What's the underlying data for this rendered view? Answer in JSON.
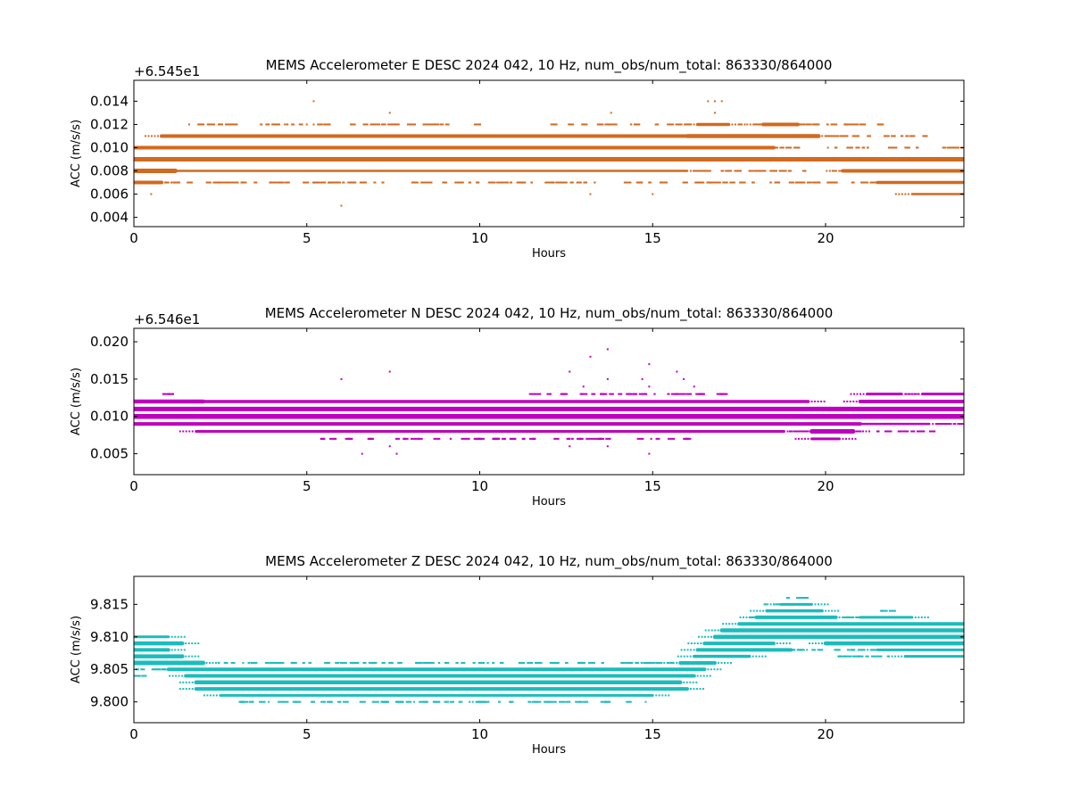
{
  "chart_data": [
    {
      "type": "scatter",
      "title": "MEMS Accelerometer E DESC 2024 042, 10 Hz, num_obs/num_total: 863330/864000",
      "offset_label": "+6.545e1",
      "xlabel": "Hours",
      "ylabel": "ACC (m/s/s)",
      "xlim": [
        0,
        24
      ],
      "ylim": [
        0.0032,
        0.0158
      ],
      "x_ticks": [
        0,
        5,
        10,
        15,
        20
      ],
      "x_tick_labels": [
        "0",
        "5",
        "10",
        "15",
        "20"
      ],
      "y_ticks": [
        0.004,
        0.006,
        0.008,
        0.01,
        0.012,
        0.014
      ],
      "y_tick_labels": [
        "0.004",
        "0.006",
        "0.008",
        "0.010",
        "0.012",
        "0.014"
      ],
      "grid": false,
      "color": "#d2691e",
      "bands": [
        {
          "y": 0.012,
          "segments": [
            [
              16.3,
              17.2,
              3.5
            ],
            [
              18.2,
              19.2,
              4
            ]
          ],
          "scatter": [
            [
              1.6,
              10.0
            ],
            [
              12.0,
              21.5
            ]
          ]
        },
        {
          "y": 0.011,
          "segments": [
            [
              0.8,
              16.0,
              4
            ],
            [
              16.0,
              19.8,
              4.5
            ]
          ],
          "scatter": [
            [
              19.8,
              23.0
            ]
          ]
        },
        {
          "y": 0.01,
          "segments": [
            [
              0.0,
              18.5,
              4
            ]
          ],
          "scatter": [
            [
              18.5,
              24.0
            ]
          ]
        },
        {
          "y": 0.009,
          "segments": [
            [
              0.0,
              24.0,
              5
            ]
          ],
          "scatter": []
        },
        {
          "y": 0.008,
          "segments": [
            [
              0.0,
              16.0,
              2.5
            ],
            [
              0.0,
              1.2,
              5
            ],
            [
              20.5,
              24.0,
              4
            ]
          ],
          "scatter": [
            [
              16.0,
              20.5
            ]
          ]
        },
        {
          "y": 0.007,
          "segments": [
            [
              0.0,
              0.8,
              4
            ],
            [
              21.5,
              24.0,
              3.5
            ]
          ],
          "scatter": [
            [
              0.8,
              21.5
            ]
          ]
        },
        {
          "y": 0.006,
          "segments": [
            [
              22.5,
              24.0,
              2.5
            ]
          ],
          "scatter": []
        }
      ],
      "points": [
        [
          5.2,
          0.014
        ],
        [
          16.6,
          0.014
        ],
        [
          16.8,
          0.014
        ],
        [
          17.0,
          0.014
        ],
        [
          7.4,
          0.013
        ],
        [
          13.8,
          0.013
        ],
        [
          16.8,
          0.013
        ],
        [
          0.5,
          0.006
        ],
        [
          13.2,
          0.006
        ],
        [
          15.0,
          0.006
        ],
        [
          6.0,
          0.005
        ],
        [
          5.0,
          0.012
        ],
        [
          5.2,
          0.012
        ],
        [
          8.0,
          0.012
        ],
        [
          1.6,
          0.012
        ]
      ]
    },
    {
      "type": "scatter",
      "title": "MEMS Accelerometer N DESC 2024 042, 10 Hz, num_obs/num_total: 863330/864000",
      "offset_label": "+6.546e1",
      "xlabel": "Hours",
      "ylabel": "ACC (m/s/s)",
      "xlim": [
        0,
        24
      ],
      "ylim": [
        0.0022,
        0.0218
      ],
      "x_ticks": [
        0,
        5,
        10,
        15,
        20
      ],
      "x_tick_labels": [
        "0",
        "5",
        "10",
        "15",
        "20"
      ],
      "y_ticks": [
        0.005,
        0.01,
        0.015,
        0.02
      ],
      "y_tick_labels": [
        "0.005",
        "0.010",
        "0.015",
        "0.020"
      ],
      "grid": false,
      "color": "#bf00bf",
      "bands": [
        {
          "y": 0.013,
          "segments": [
            [
              21.2,
              22.2,
              3
            ],
            [
              22.8,
              24.0,
              3
            ]
          ],
          "scatter": [
            [
              0.8,
              1.2
            ],
            [
              11.2,
              17.5
            ]
          ]
        },
        {
          "y": 0.012,
          "segments": [
            [
              0.0,
              2.0,
              4.5
            ],
            [
              2.0,
              19.5,
              3.5
            ],
            [
              21.0,
              24.0,
              4
            ]
          ],
          "scatter": []
        },
        {
          "y": 0.011,
          "segments": [
            [
              0.0,
              24.0,
              5
            ]
          ],
          "scatter": []
        },
        {
          "y": 0.01,
          "segments": [
            [
              0.0,
              24.0,
              5.5
            ]
          ],
          "scatter": []
        },
        {
          "y": 0.009,
          "segments": [
            [
              0.0,
              21.0,
              4
            ],
            [
              21.0,
              23.0,
              2.5
            ]
          ],
          "scatter": [
            [
              23.0,
              24.0
            ]
          ]
        },
        {
          "y": 0.008,
          "segments": [
            [
              1.8,
              18.8,
              3
            ],
            [
              19.6,
              20.8,
              5
            ]
          ],
          "scatter": [
            [
              18.8,
              23.0
            ]
          ]
        },
        {
          "y": 0.007,
          "segments": [
            [
              19.6,
              20.4,
              3
            ]
          ],
          "scatter": [
            [
              5.0,
              16.0
            ]
          ]
        }
      ],
      "points": [
        [
          13.7,
          0.019
        ],
        [
          13.2,
          0.018
        ],
        [
          7.4,
          0.016
        ],
        [
          12.6,
          0.016
        ],
        [
          14.9,
          0.017
        ],
        [
          15.7,
          0.016
        ],
        [
          6.0,
          0.015
        ],
        [
          13.7,
          0.015
        ],
        [
          14.7,
          0.015
        ],
        [
          15.9,
          0.015
        ],
        [
          6.6,
          0.005
        ],
        [
          7.6,
          0.005
        ],
        [
          12.6,
          0.006
        ],
        [
          13.7,
          0.006
        ],
        [
          14.9,
          0.005
        ],
        [
          7.4,
          0.006
        ],
        [
          14.9,
          0.014
        ],
        [
          16.2,
          0.014
        ],
        [
          13.0,
          0.014
        ]
      ]
    },
    {
      "type": "scatter",
      "title": "MEMS Accelerometer Z DESC 2024 042, 10 Hz, num_obs/num_total: 863330/864000",
      "offset_label": "",
      "xlabel": "Hours",
      "ylabel": "ACC (m/s/s)",
      "xlim": [
        0,
        24
      ],
      "ylim": [
        9.7968,
        9.8193
      ],
      "x_ticks": [
        0,
        5,
        10,
        15,
        20
      ],
      "x_tick_labels": [
        "0",
        "5",
        "10",
        "15",
        "20"
      ],
      "y_ticks": [
        9.8,
        9.805,
        9.81,
        9.815
      ],
      "y_tick_labels": [
        "9.800",
        "9.805",
        "9.810",
        "9.815"
      ],
      "grid": false,
      "color": "#1abcbc",
      "bands": [
        {
          "y": 9.816,
          "segments": [],
          "scatter": [
            [
              18.8,
              19.4
            ]
          ]
        },
        {
          "y": 9.815,
          "segments": [
            [
              18.7,
              19.6,
              3
            ]
          ],
          "scatter": [
            [
              18.2,
              18.7
            ]
          ]
        },
        {
          "y": 9.814,
          "segments": [
            [
              18.3,
              19.9,
              3.5
            ]
          ],
          "scatter": [
            [
              21.3,
              22.0
            ]
          ]
        },
        {
          "y": 9.813,
          "segments": [
            [
              18.0,
              20.3,
              4
            ],
            [
              21.0,
              22.5,
              3
            ]
          ],
          "scatter": [
            [
              17.6,
              18.0
            ],
            [
              20.3,
              21.0
            ]
          ]
        },
        {
          "y": 9.812,
          "segments": [
            [
              17.5,
              24.0,
              4
            ]
          ],
          "scatter": []
        },
        {
          "y": 9.811,
          "segments": [
            [
              17.0,
              24.0,
              4.5
            ]
          ],
          "scatter": []
        },
        {
          "y": 9.81,
          "segments": [
            [
              0.0,
              1.0,
              3
            ],
            [
              16.8,
              24.0,
              4.5
            ]
          ],
          "scatter": []
        },
        {
          "y": 9.809,
          "segments": [
            [
              0.0,
              1.4,
              4.5
            ],
            [
              16.5,
              18.5,
              4
            ],
            [
              20.0,
              24.0,
              4.5
            ]
          ],
          "scatter": []
        },
        {
          "y": 9.808,
          "segments": [
            [
              0.0,
              1.0,
              4
            ],
            [
              16.3,
              19.0,
              4
            ],
            [
              21.5,
              24.0,
              3
            ]
          ],
          "scatter": [
            [
              19.0,
              21.5
            ]
          ]
        },
        {
          "y": 9.807,
          "segments": [
            [
              0.0,
              1.4,
              4.5
            ],
            [
              16.2,
              17.8,
              3.5
            ],
            [
              22.3,
              24.0,
              3
            ]
          ],
          "scatter": [
            [
              20.2,
              22.3
            ]
          ]
        },
        {
          "y": 9.806,
          "segments": [
            [
              0.0,
              2.0,
              5
            ],
            [
              15.8,
              16.8,
              4
            ]
          ],
          "scatter": [
            [
              2.0,
              15.8
            ]
          ]
        },
        {
          "y": 9.805,
          "segments": [
            [
              1.0,
              16.5,
              4
            ]
          ],
          "scatter": [
            [
              0.0,
              1.0
            ]
          ]
        },
        {
          "y": 9.804,
          "segments": [
            [
              1.5,
              16.2,
              4
            ]
          ],
          "scatter": [
            [
              0.0,
              0.3
            ]
          ]
        },
        {
          "y": 9.803,
          "segments": [
            [
              1.8,
              15.8,
              4.5
            ]
          ],
          "scatter": []
        },
        {
          "y": 9.802,
          "segments": [
            [
              1.8,
              16.0,
              4
            ]
          ],
          "scatter": []
        },
        {
          "y": 9.801,
          "segments": [
            [
              2.5,
              15.0,
              3
            ]
          ],
          "scatter": []
        },
        {
          "y": 9.8,
          "segments": [],
          "scatter": [
            [
              3.0,
              14.8
            ]
          ]
        }
      ],
      "points": [
        [
          3.1,
          9.8
        ],
        [
          3.9,
          9.8
        ],
        [
          4.7,
          9.8
        ],
        [
          7.3,
          9.8
        ],
        [
          8.1,
          9.8
        ],
        [
          9.8,
          9.8
        ],
        [
          14.8,
          9.8
        ]
      ]
    }
  ]
}
